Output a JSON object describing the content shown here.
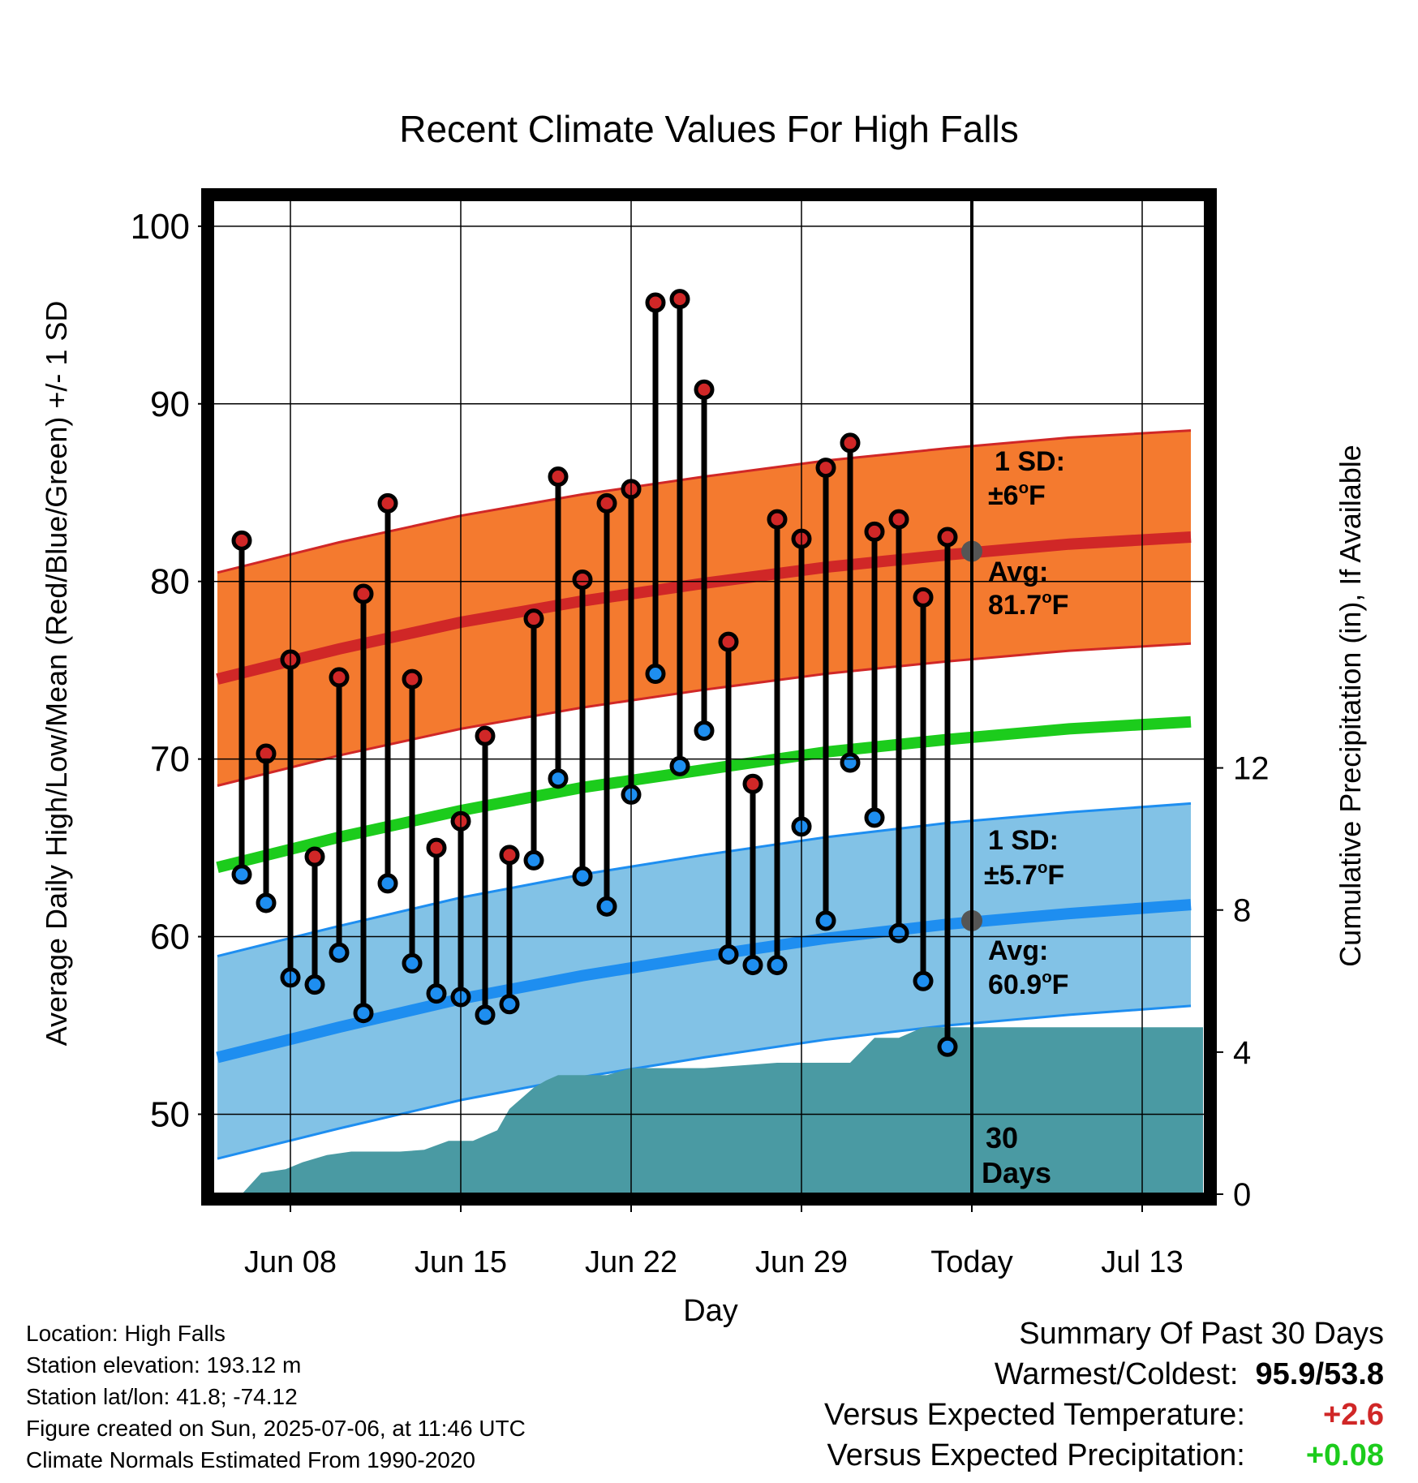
{
  "chart_data": {
    "type": "line",
    "title": "Recent Climate Values For High Falls",
    "xlabel": "Day",
    "ylabel": "Average Daily High/Low/Mean (Red/Blue/Green) +/- 1 SD",
    "y2label": "Cumulative Precipitation (in), If Available",
    "ylim": [
      45.5,
      101.5
    ],
    "y2lim": [
      0,
      28
    ],
    "y_ticks": [
      "50",
      "60",
      "70",
      "80",
      "90",
      "100"
    ],
    "y2_ticks": [
      "0",
      "4",
      "8",
      "12"
    ],
    "x_ticks": [
      {
        "day": 8,
        "label": "Jun 08"
      },
      {
        "day": 15,
        "label": "Jun 15"
      },
      {
        "day": 22,
        "label": "Jun 22"
      },
      {
        "day": 29,
        "label": "Jun 29"
      },
      {
        "day": 36,
        "label": "Today"
      },
      {
        "day": 43,
        "label": "Jul 13"
      }
    ],
    "xlim": [
      4.8,
      45.6
    ],
    "today_day": 36,
    "grid": true,
    "days": [
      6,
      7,
      8,
      9,
      10,
      11,
      12,
      13,
      14,
      15,
      16,
      17,
      18,
      19,
      20,
      21,
      22,
      23,
      24,
      25,
      26,
      27,
      28,
      29,
      30,
      31,
      32,
      33,
      34,
      35
    ],
    "daily_high": [
      82.3,
      70.3,
      75.6,
      64.5,
      74.6,
      79.3,
      84.4,
      74.5,
      65.0,
      66.5,
      71.3,
      64.6,
      77.9,
      85.9,
      80.1,
      84.4,
      85.2,
      95.7,
      95.9,
      90.8,
      76.6,
      68.6,
      83.5,
      82.4,
      86.4,
      87.8,
      82.8,
      83.5,
      79.1,
      82.5
    ],
    "daily_low": [
      63.5,
      61.9,
      57.7,
      57.3,
      59.1,
      55.7,
      63.0,
      58.5,
      56.8,
      56.6,
      55.6,
      56.2,
      64.3,
      68.9,
      63.4,
      61.7,
      68.0,
      74.8,
      69.6,
      71.6,
      59.0,
      58.4,
      58.4,
      66.2,
      60.9,
      69.8,
      66.7,
      60.2,
      57.5,
      53.8
    ],
    "normals_x": [
      5,
      10,
      15,
      20,
      25,
      30,
      35,
      40,
      45
    ],
    "normal_high": [
      74.5,
      76.2,
      77.7,
      78.9,
      79.9,
      80.8,
      81.5,
      82.1,
      82.5
    ],
    "normal_high_sd": 6.0,
    "normal_low": [
      53.2,
      54.9,
      56.5,
      57.8,
      58.9,
      59.9,
      60.7,
      61.3,
      61.8
    ],
    "normal_low_sd": 5.7,
    "normal_mean": [
      63.9,
      65.6,
      67.1,
      68.4,
      69.4,
      70.4,
      71.1,
      71.7,
      72.1
    ],
    "precip_x": [
      6,
      6.8,
      7.8,
      8.5,
      9.5,
      10.5,
      11.5,
      12.5,
      13.5,
      14.5,
      15.5,
      16.5,
      17,
      17.5,
      18,
      18.5,
      19,
      20,
      20.5,
      21,
      22,
      23,
      24,
      25,
      26,
      27,
      28,
      29,
      30,
      31,
      32,
      33,
      34,
      35,
      36,
      37,
      38,
      39,
      40,
      41,
      42,
      43,
      44,
      45.5
    ],
    "precip_y": [
      0,
      0.6,
      0.7,
      0.9,
      1.1,
      1.2,
      1.2,
      1.2,
      1.25,
      1.5,
      1.5,
      1.8,
      2.4,
      2.7,
      3.0,
      3.2,
      3.35,
      3.35,
      3.35,
      3.35,
      3.55,
      3.55,
      3.55,
      3.55,
      3.6,
      3.65,
      3.7,
      3.7,
      3.7,
      3.7,
      4.4,
      4.4,
      4.7,
      4.7,
      4.7,
      4.7,
      4.7,
      4.7,
      4.7,
      4.7,
      4.7,
      4.7,
      4.7,
      4.7
    ],
    "annotations": {
      "high_sd_label": "1 SD:",
      "high_sd_value": "±6",
      "high_avg_label": "Avg:",
      "high_avg_value": "81.7",
      "high_avg_point": 81.7,
      "low_sd_label": "1 SD:",
      "low_sd_value": "±5.7",
      "low_avg_label": "Avg:",
      "low_avg_value": "60.9",
      "low_avg_point": 60.9,
      "degree_sup": "o",
      "unit": "F",
      "days_count": "30",
      "days_word": "Days"
    },
    "colors": {
      "high_band": "#f47a2f",
      "high_line": "#d02727",
      "low_band": "#82c2e6",
      "low_line": "#1e8ef0",
      "mean_line": "#1ccc1c",
      "precip": "#4a9aa3",
      "high_dot": "#d02727",
      "low_dot": "#1e8ef0",
      "annotation": "#555555"
    }
  },
  "station": {
    "location": "Location: High Falls",
    "elevation": "Station elevation: 193.12 m",
    "latlon": "Station lat/lon: 41.8; -74.12",
    "created": "Figure created on Sun, 2025-07-06, at 11:46 UTC",
    "normals": "Climate Normals Estimated From 1990-2020"
  },
  "summary": {
    "heading": "Summary Of Past 30 Days",
    "warm_cold_label": "Warmest/Coldest:",
    "warm_cold_value": "95.9/53.8",
    "temp_label": "Versus Expected Temperature:",
    "temp_value": "+2.6",
    "temp_color": "#d02727",
    "precip_label": "Versus Expected Precipitation:",
    "precip_value": "+0.08",
    "precip_color": "#1ccc1c"
  }
}
